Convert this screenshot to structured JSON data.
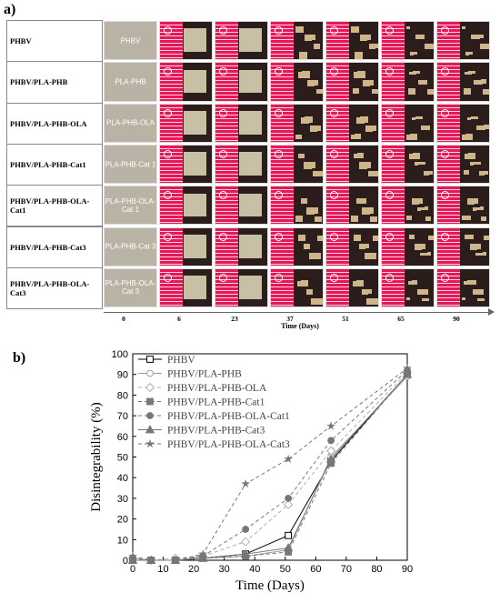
{
  "panel_a_label": "a)",
  "panel_b_label": "b)",
  "grid": {
    "samples": [
      "PHBV",
      "PHBV/PLA-PHB",
      "PHBV/PLA-PHB-OLA",
      "PHBV/PLA-PHB-Cat1",
      "PHBV/PLA-PHB-OLA-Cat1",
      "PHBV/PLA-PHB-Cat3",
      "PHBV/PLA-PHB-OLA-Cat3"
    ],
    "reference_labels": [
      "PHBV",
      "PLA-PHB",
      "PLA-PHB-OLA",
      "PLA-PHB-Cat 1",
      "PLA-PHB-OLA-Cat 1",
      "PLA-PHB-Cat 3",
      "PLA-PHB-OLA-Cat 3"
    ],
    "day_ticks": [
      "0",
      "6",
      "23",
      "37",
      "51",
      "65",
      "90"
    ],
    "axis_title": "Time (Days)"
  },
  "chart_data": {
    "type": "line",
    "xlabel": "Time (Days)",
    "ylabel": "Disintegrability (%)",
    "xlim": [
      0,
      90
    ],
    "ylim": [
      0,
      100
    ],
    "xticks": [
      "0",
      "10",
      "20",
      "30",
      "40",
      "50",
      "60",
      "70",
      "80",
      "90"
    ],
    "yticks": [
      "0",
      "10",
      "20",
      "30",
      "40",
      "50",
      "60",
      "70",
      "80",
      "90",
      "100"
    ],
    "legend_position": "top-left",
    "x": [
      0,
      6,
      14,
      23,
      37,
      51,
      65,
      90
    ],
    "series": [
      {
        "name": "PHBV",
        "style": "solid",
        "marker": "open-square",
        "color": "#000000",
        "values": [
          0,
          0,
          0,
          1,
          3,
          12,
          48,
          90
        ]
      },
      {
        "name": "PHBV/PLA-PHB",
        "style": "solid",
        "marker": "open-circle",
        "color": "#a0a0a0",
        "values": [
          1,
          0,
          0,
          1,
          2,
          5,
          50,
          89
        ]
      },
      {
        "name": "PHBV/PLA-PHB-OLA",
        "style": "dashed",
        "marker": "open-diamond",
        "color": "#b0b0b0",
        "values": [
          1,
          0,
          1,
          2,
          9,
          27,
          53,
          91
        ]
      },
      {
        "name": "PHBV/PLA-PHB-Cat1",
        "style": "dashed",
        "marker": "filled-square",
        "color": "#777777",
        "values": [
          0,
          0,
          0,
          1,
          2,
          4,
          47,
          90
        ]
      },
      {
        "name": "PHBV/PLA-PHB-OLA-Cat1",
        "style": "dashed",
        "marker": "filled-circle",
        "color": "#777777",
        "values": [
          1,
          0,
          0,
          2,
          15,
          30,
          58,
          92
        ]
      },
      {
        "name": "PHBV/PLA-PHB-Cat3",
        "style": "solid",
        "marker": "filled-triangle",
        "color": "#777777",
        "values": [
          0,
          0,
          0,
          1,
          3,
          6,
          49,
          90
        ]
      },
      {
        "name": "PHBV/PLA-PHB-OLA-Cat3",
        "style": "dashed",
        "marker": "star",
        "color": "#777777",
        "values": [
          2,
          0,
          0,
          3,
          37,
          49,
          65,
          93
        ]
      }
    ]
  }
}
